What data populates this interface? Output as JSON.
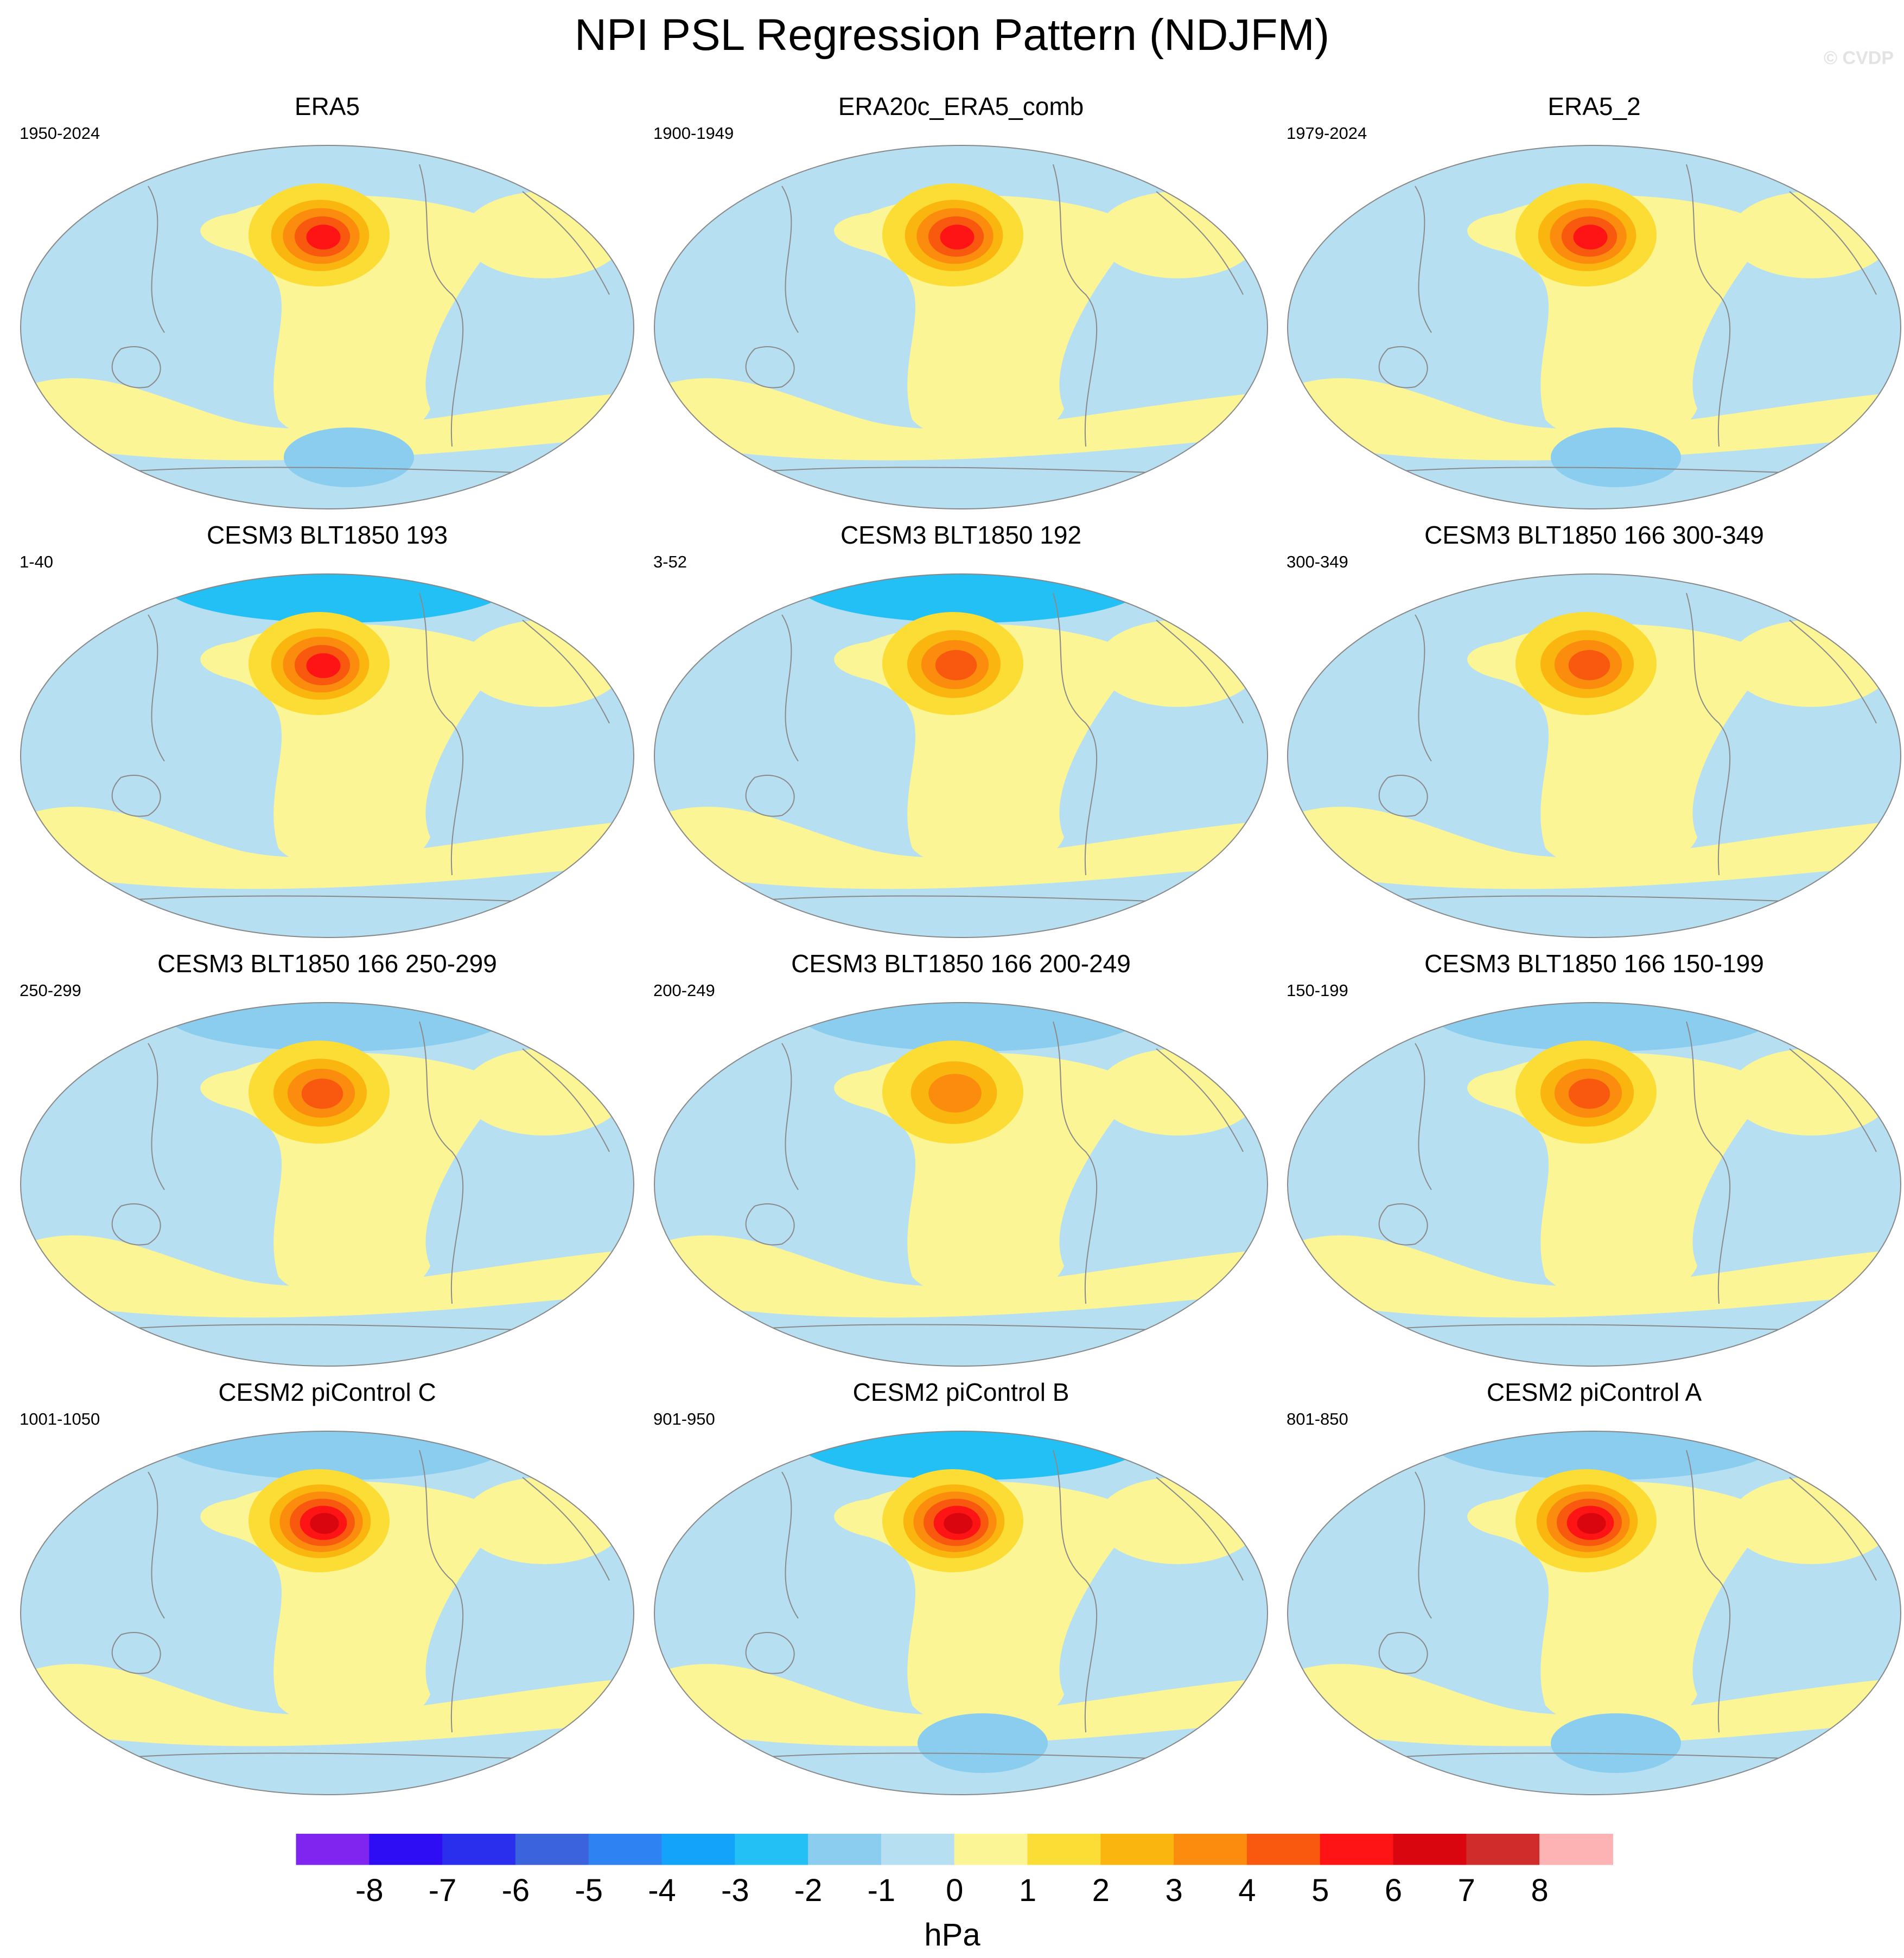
{
  "title": "NPI PSL Regression Pattern (NDJFM)",
  "watermark": "© CVDP",
  "colors": {
    "ocean_neg": "#b7dff2",
    "land_pos": "#fbf595",
    "coast": "#8a8a8a",
    "map_outline": "#888888"
  },
  "chart_data": {
    "type": "heatmap",
    "projection": "Hammer (global)",
    "variable": "Sea level pressure regression onto NPI",
    "season": "NDJFM",
    "units": "hPa",
    "panels": [
      {
        "title": "ERA5",
        "period": "1950-2024",
        "npac_max": 5,
        "arctic_min": -1,
        "sh_min": -2
      },
      {
        "title": "ERA20c_ERA5_comb",
        "period": "1900-1949",
        "npac_max": 5,
        "arctic_min": -1,
        "sh_min": -1
      },
      {
        "title": "ERA5_2",
        "period": "1979-2024",
        "npac_max": 5,
        "arctic_min": -1,
        "sh_min": -2
      },
      {
        "title": "CESM3 BLT1850 193",
        "period": "1-40",
        "npac_max": 5,
        "arctic_min": -3,
        "sh_min": -1
      },
      {
        "title": "CESM3 BLT1850 192",
        "period": "3-52",
        "npac_max": 4,
        "arctic_min": -3,
        "sh_min": -1
      },
      {
        "title": "CESM3 BLT1850 166 300-349",
        "period": "300-349",
        "npac_max": 4,
        "arctic_min": -1,
        "sh_min": -1
      },
      {
        "title": "CESM3 BLT1850 166 250-299",
        "period": "250-299",
        "npac_max": 4,
        "arctic_min": -2,
        "sh_min": -1
      },
      {
        "title": "CESM3 BLT1850 166 200-249",
        "period": "200-249",
        "npac_max": 3,
        "arctic_min": -2,
        "sh_min": -1
      },
      {
        "title": "CESM3 BLT1850 166 150-199",
        "period": "150-199",
        "npac_max": 4,
        "arctic_min": -2,
        "sh_min": -1
      },
      {
        "title": "CESM2 piControl C",
        "period": "1001-1050",
        "npac_max": 6,
        "arctic_min": -2,
        "sh_min": -1
      },
      {
        "title": "CESM2 piControl B",
        "period": "901-950",
        "npac_max": 6,
        "arctic_min": -3,
        "sh_min": -2
      },
      {
        "title": "CESM2 piControl A",
        "period": "801-850",
        "npac_max": 6,
        "arctic_min": -2,
        "sh_min": -2
      }
    ],
    "colorbar": {
      "label": "hPa",
      "levels": [
        "-8",
        "-7",
        "-6",
        "-5",
        "-4",
        "-3",
        "-2",
        "-1",
        "0",
        "1",
        "2",
        "3",
        "4",
        "5",
        "6",
        "7",
        "8"
      ],
      "colors": [
        "#8024f0",
        "#2e0df5",
        "#2a2fed",
        "#3a63dd",
        "#2f82f2",
        "#14a3fa",
        "#22c0f5",
        "#8acdef",
        "#b7dff2",
        "#fbf595",
        "#fbdd35",
        "#fbb50f",
        "#fb8c0d",
        "#f9580f",
        "#fe1414",
        "#d9050f",
        "#d12c2c",
        "#fdb3b3"
      ]
    }
  }
}
